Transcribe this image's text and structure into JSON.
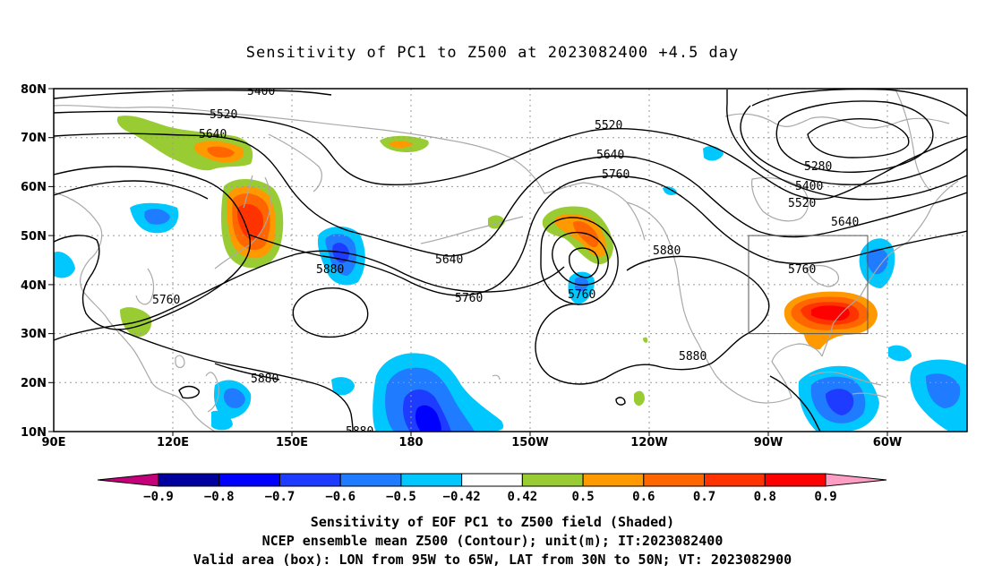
{
  "title": "Sensitivity of PC1 to Z500 at 2023082400 +4.5 day",
  "lat_labels": [
    "80N",
    "70N",
    "60N",
    "50N",
    "40N",
    "30N",
    "20N",
    "10N"
  ],
  "lon_labels": [
    "90E",
    "120E",
    "150E",
    "180",
    "150W",
    "120W",
    "90W",
    "60W"
  ],
  "contour_labels": {
    "c5400_top": "5400",
    "c5520_left": "5520",
    "c5640_left": "5640",
    "c5520_mid": "5520",
    "c5640_mid": "5640",
    "c5760_mid": "5760",
    "c5280": "5280",
    "c5400_right": "5400",
    "c5520_right": "5520",
    "c5640_right": "5640",
    "c5760_right": "5760",
    "c5640_pacific": "5640",
    "c5760_pacific": "5760",
    "c5760_low": "5760",
    "c5880_west": "5880",
    "c5880_n": "5880",
    "c5880_s": "5880",
    "c5760_west": "5760",
    "c5880_sw": "5880",
    "c5880_bottom": "5880"
  },
  "colorbar": {
    "labels": [
      "−0.9",
      "−0.8",
      "−0.7",
      "−0.6",
      "−0.5",
      "−0.42",
      "0.42",
      "0.5",
      "0.6",
      "0.7",
      "0.8",
      "0.9"
    ],
    "colors": [
      "#00009e",
      "#0000ff",
      "#1e3cff",
      "#1f7bff",
      "#00c8ff",
      "#ffffff",
      "#99cc33",
      "#ff9900",
      "#ff6600",
      "#ff3300",
      "#ff0000"
    ],
    "low_color": "#c4007a",
    "high_color": "#ff9ec4"
  },
  "caption": [
    "Sensitivity of EOF PC1 to Z500 field (Shaded)",
    "NCEP ensemble mean Z500 (Contour); unit(m); IT:2023082400",
    "Valid area (box): LON from 95W to 65W, LAT from 30N to 50N; VT: 2023082900"
  ],
  "valid_box": {
    "lon_from": "95W",
    "lon_to": "65W",
    "lat_from": "30N",
    "lat_to": "50N"
  },
  "shading": [
    {
      "region": "kamchatka-south",
      "sign": "positive",
      "level": "0.5"
    },
    {
      "region": "japan-east",
      "sign": "positive",
      "level": "0.8"
    },
    {
      "region": "okhotsk",
      "sign": "positive",
      "level": "0.6"
    },
    {
      "region": "yellow-sea",
      "sign": "negative",
      "level": "-0.6"
    },
    {
      "region": "west-pacific-40n",
      "sign": "negative",
      "level": "-0.7"
    },
    {
      "region": "gulf-of-alaska",
      "sign": "positive",
      "level": "0.7"
    },
    {
      "region": "east-pacific-40n",
      "sign": "negative",
      "level": "-0.6"
    },
    {
      "region": "southeast-us",
      "sign": "positive",
      "level": "0.9"
    },
    {
      "region": "northeast-us-coast",
      "sign": "negative",
      "level": "-0.6"
    },
    {
      "region": "central-pacific-15n",
      "sign": "negative",
      "level": "-0.8"
    },
    {
      "region": "caribbean",
      "sign": "negative",
      "level": "-0.7"
    },
    {
      "region": "west-atlantic-20n",
      "sign": "negative",
      "level": "-0.6"
    }
  ]
}
